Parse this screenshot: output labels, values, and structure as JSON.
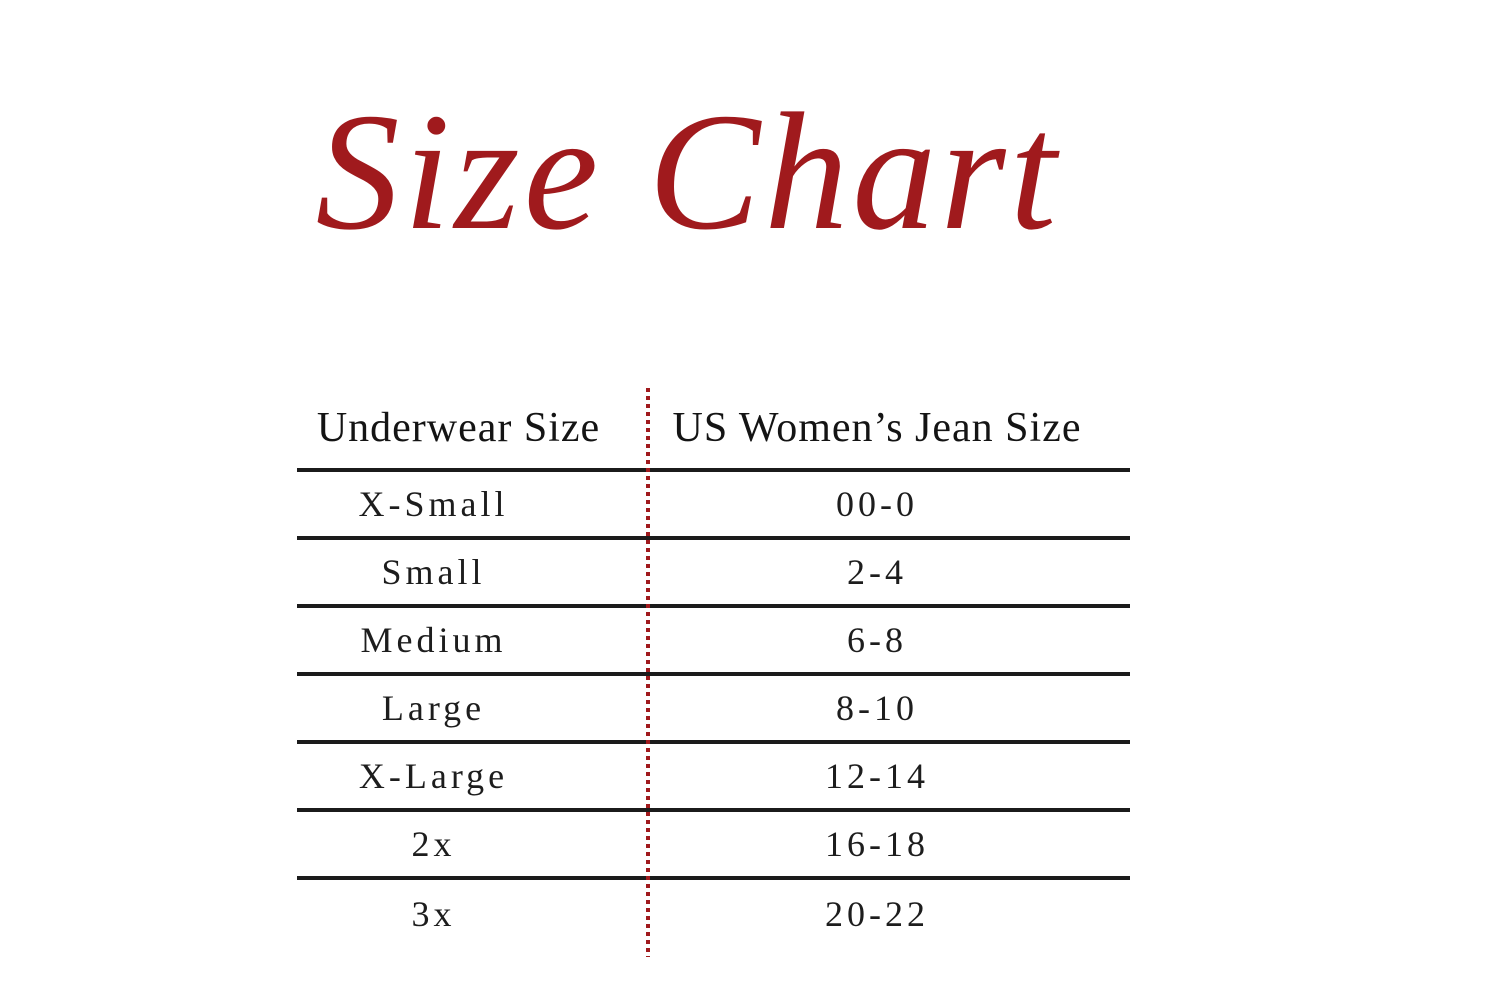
{
  "page": {
    "background": "#ffffff"
  },
  "title": {
    "text": "Size Chart",
    "color": "#a01a1d",
    "style": "handwritten-script"
  },
  "table": {
    "columns": [
      {
        "label": "Underwear Size"
      },
      {
        "label": "US Women’s Jean Size"
      }
    ],
    "rows": [
      {
        "underwear_size": "X-Small",
        "jean_size": "00-0"
      },
      {
        "underwear_size": "Small",
        "jean_size": "2-4"
      },
      {
        "underwear_size": "Medium",
        "jean_size": "6-8"
      },
      {
        "underwear_size": "Large",
        "jean_size": "8-10"
      },
      {
        "underwear_size": "X-Large",
        "jean_size": "12-14"
      },
      {
        "underwear_size": "2x",
        "jean_size": "16-18"
      },
      {
        "underwear_size": "3x",
        "jean_size": "20-22"
      }
    ],
    "separator_line_color": "#1b1b1b",
    "divider_dotted_color": "#a01a1d",
    "text_color": "#1d1d1d"
  }
}
